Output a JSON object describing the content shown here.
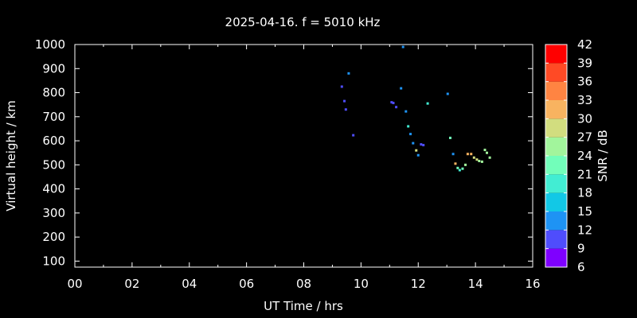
{
  "chart_data": {
    "type": "scatter",
    "title": "2025-04-16. f = 5010 kHz",
    "xlabel": "UT Time / hrs",
    "ylabel": "Virtual height / km",
    "colorbar_label": "SNR / dB",
    "xlim": [
      0,
      16
    ],
    "ylim": [
      75,
      1000
    ],
    "xticks": [
      "00",
      "02",
      "04",
      "06",
      "08",
      "10",
      "12",
      "14",
      "16"
    ],
    "yticks": [
      100,
      200,
      300,
      400,
      500,
      600,
      700,
      800,
      900,
      1000
    ],
    "colorbar": {
      "range": [
        6,
        42
      ],
      "ticks": [
        6,
        9,
        12,
        15,
        18,
        21,
        24,
        27,
        30,
        33,
        36,
        39,
        42
      ],
      "colors": [
        "#7f00ff",
        "#4f4dfc",
        "#1e93f4",
        "#12c8e6",
        "#42edd3",
        "#72feba",
        "#a2f59c",
        "#d2dd7f",
        "#f8b360",
        "#ff8442",
        "#ff4a25",
        "#ff0000"
      ]
    },
    "grid": false,
    "points": [
      {
        "x": 9.33,
        "y": 825,
        "snr": 10
      },
      {
        "x": 9.42,
        "y": 765,
        "snr": 10
      },
      {
        "x": 9.47,
        "y": 730,
        "snr": 10
      },
      {
        "x": 9.57,
        "y": 880,
        "snr": 13
      },
      {
        "x": 9.73,
        "y": 623,
        "snr": 10
      },
      {
        "x": 11.07,
        "y": 760,
        "snr": 11
      },
      {
        "x": 11.13,
        "y": 757,
        "snr": 11
      },
      {
        "x": 11.23,
        "y": 740,
        "snr": 11
      },
      {
        "x": 11.4,
        "y": 818,
        "snr": 12
      },
      {
        "x": 11.47,
        "y": 990,
        "snr": 13
      },
      {
        "x": 11.57,
        "y": 722,
        "snr": 12
      },
      {
        "x": 11.65,
        "y": 660,
        "snr": 19
      },
      {
        "x": 11.73,
        "y": 628,
        "snr": 14
      },
      {
        "x": 11.82,
        "y": 590,
        "snr": 12
      },
      {
        "x": 11.93,
        "y": 560,
        "snr": 28
      },
      {
        "x": 12.0,
        "y": 540,
        "snr": 12
      },
      {
        "x": 12.1,
        "y": 585,
        "snr": 11
      },
      {
        "x": 12.18,
        "y": 582,
        "snr": 11
      },
      {
        "x": 12.33,
        "y": 755,
        "snr": 18
      },
      {
        "x": 13.03,
        "y": 795,
        "snr": 12
      },
      {
        "x": 13.12,
        "y": 612,
        "snr": 22
      },
      {
        "x": 13.22,
        "y": 545,
        "snr": 13
      },
      {
        "x": 13.3,
        "y": 505,
        "snr": 30
      },
      {
        "x": 13.38,
        "y": 487,
        "snr": 21
      },
      {
        "x": 13.45,
        "y": 478,
        "snr": 19
      },
      {
        "x": 13.55,
        "y": 484,
        "snr": 21
      },
      {
        "x": 13.65,
        "y": 500,
        "snr": 26
      },
      {
        "x": 13.73,
        "y": 545,
        "snr": 30
      },
      {
        "x": 13.85,
        "y": 545,
        "snr": 30
      },
      {
        "x": 13.95,
        "y": 530,
        "snr": 27
      },
      {
        "x": 14.05,
        "y": 522,
        "snr": 27
      },
      {
        "x": 14.13,
        "y": 516,
        "snr": 26
      },
      {
        "x": 14.23,
        "y": 513,
        "snr": 25
      },
      {
        "x": 14.33,
        "y": 562,
        "snr": 26
      },
      {
        "x": 14.4,
        "y": 550,
        "snr": 26
      },
      {
        "x": 14.5,
        "y": 530,
        "snr": 24
      }
    ]
  }
}
